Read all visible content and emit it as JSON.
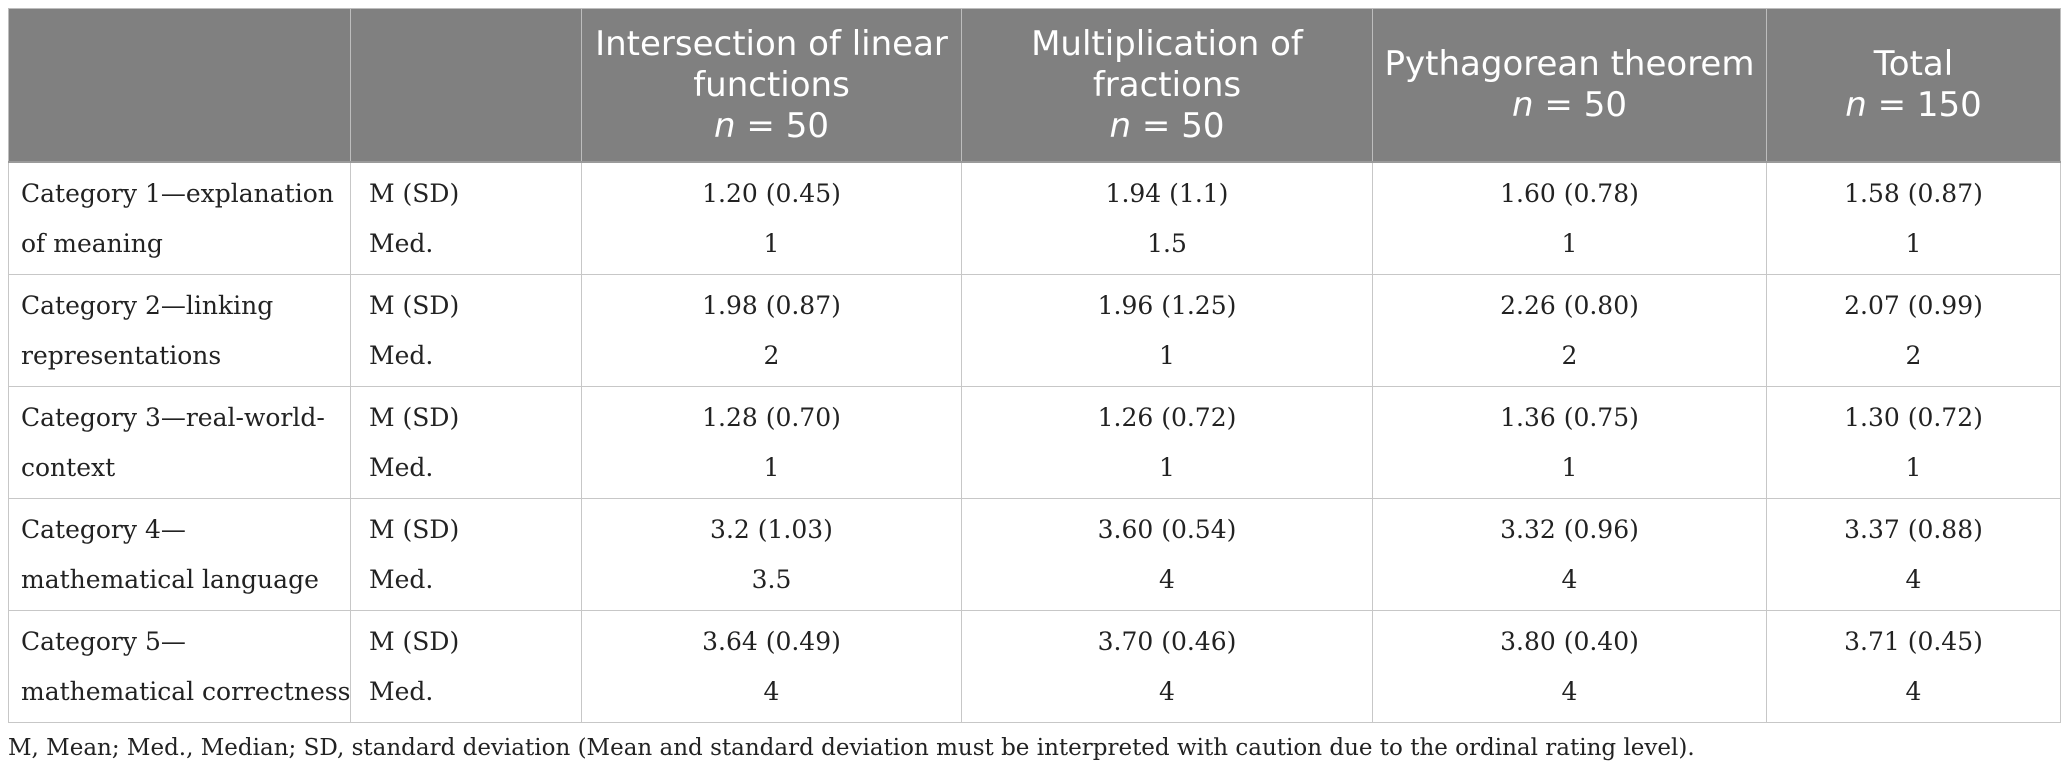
{
  "table": {
    "headers": [
      {
        "text": "",
        "n_label": "",
        "n_value": ""
      },
      {
        "text": "",
        "n_label": "",
        "n_value": ""
      },
      {
        "text": "Intersection of linear functions",
        "n_label": "n",
        "n_value": " = 50"
      },
      {
        "text": "Multiplication of fractions",
        "n_label": "n",
        "n_value": " = 50"
      },
      {
        "text": "Pythagorean theorem",
        "n_label": "n",
        "n_value": " = 50"
      },
      {
        "text": "Total",
        "n_label": "n",
        "n_value": " = 150"
      }
    ],
    "stat_labels": [
      "M (SD)",
      "Med."
    ],
    "rows": [
      {
        "category": [
          "Category 1—explanation",
          "of meaning"
        ],
        "mean_sd": [
          "1.20 (0.45)",
          "1.94 (1.1)",
          "1.60 (0.78)",
          "1.58 (0.87)"
        ],
        "median": [
          "1",
          "1.5",
          "1",
          "1"
        ]
      },
      {
        "category": [
          "Category 2—linking",
          "representations"
        ],
        "mean_sd": [
          "1.98 (0.87)",
          "1.96 (1.25)",
          "2.26 (0.80)",
          "2.07 (0.99)"
        ],
        "median": [
          "2",
          "1",
          "2",
          "2"
        ]
      },
      {
        "category": [
          "Category 3—real-world-",
          "context"
        ],
        "mean_sd": [
          "1.28 (0.70)",
          "1.26 (0.72)",
          "1.36 (0.75)",
          "1.30 (0.72)"
        ],
        "median": [
          "1",
          "1",
          "1",
          "1"
        ]
      },
      {
        "category": [
          "Category 4—",
          "mathematical language"
        ],
        "mean_sd": [
          "3.2 (1.03)",
          "3.60 (0.54)",
          "3.32 (0.96)",
          "3.37 (0.88)"
        ],
        "median": [
          "3.5",
          "4",
          "4",
          "4"
        ]
      },
      {
        "category": [
          "Category 5—",
          "mathematical correctness"
        ],
        "mean_sd": [
          "3.64 (0.49)",
          "3.70 (0.46)",
          "3.80 (0.40)",
          "3.71 (0.45)"
        ],
        "median": [
          "4",
          "4",
          "4",
          "4"
        ]
      }
    ]
  },
  "footnote": "M, Mean; Med., Median; SD, standard deviation (Mean and standard deviation must be interpreted with caution due to the ordinal rating level).",
  "colors": {
    "header_bg": "#808080",
    "header_text": "#ffffff",
    "border": "#c7c7c7"
  }
}
